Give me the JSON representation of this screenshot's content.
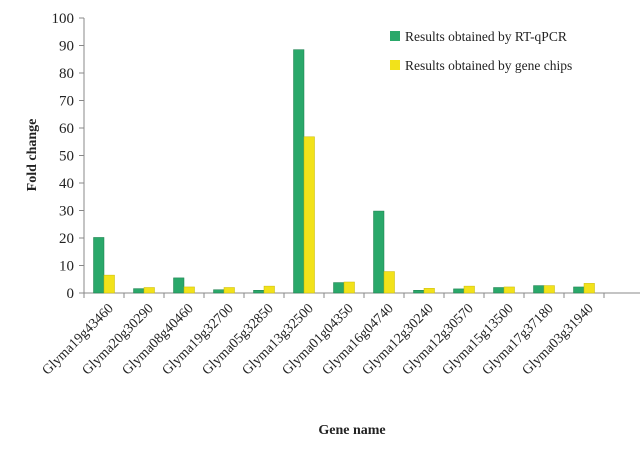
{
  "chart_data": {
    "type": "bar",
    "title": "",
    "xlabel": "Gene name",
    "ylabel": "Fold change",
    "ylim": [
      0,
      100
    ],
    "yticks": [
      0,
      10,
      20,
      30,
      40,
      50,
      60,
      70,
      80,
      90,
      100
    ],
    "grid": false,
    "legend_position": "top-right",
    "categories": [
      "Glyma19g43460",
      "Glyma20g30290",
      "Glyma08g40460",
      "Glyma19g32700",
      "Glyma05g32850",
      "Glyma13g32500",
      "Glyma01g04350",
      "Glyma16g04740",
      "Glyma12g30240",
      "Glyma12g30570",
      "Glyma15g13500",
      "Glyma17g37180",
      "Glyma03g31940"
    ],
    "series": [
      {
        "name": "Results obtained by RT-qPCR",
        "color": "#2aa86a",
        "values": [
          20.2,
          1.6,
          5.5,
          1.2,
          1.0,
          88.5,
          3.8,
          29.8,
          1.0,
          1.5,
          2.0,
          2.7,
          2.2
        ]
      },
      {
        "name": "Results obtained by gene chips",
        "color": "#f2e21a",
        "values": [
          6.5,
          2.0,
          2.2,
          2.0,
          2.5,
          56.8,
          4.0,
          7.8,
          1.7,
          2.5,
          2.2,
          2.7,
          3.5
        ]
      }
    ]
  }
}
